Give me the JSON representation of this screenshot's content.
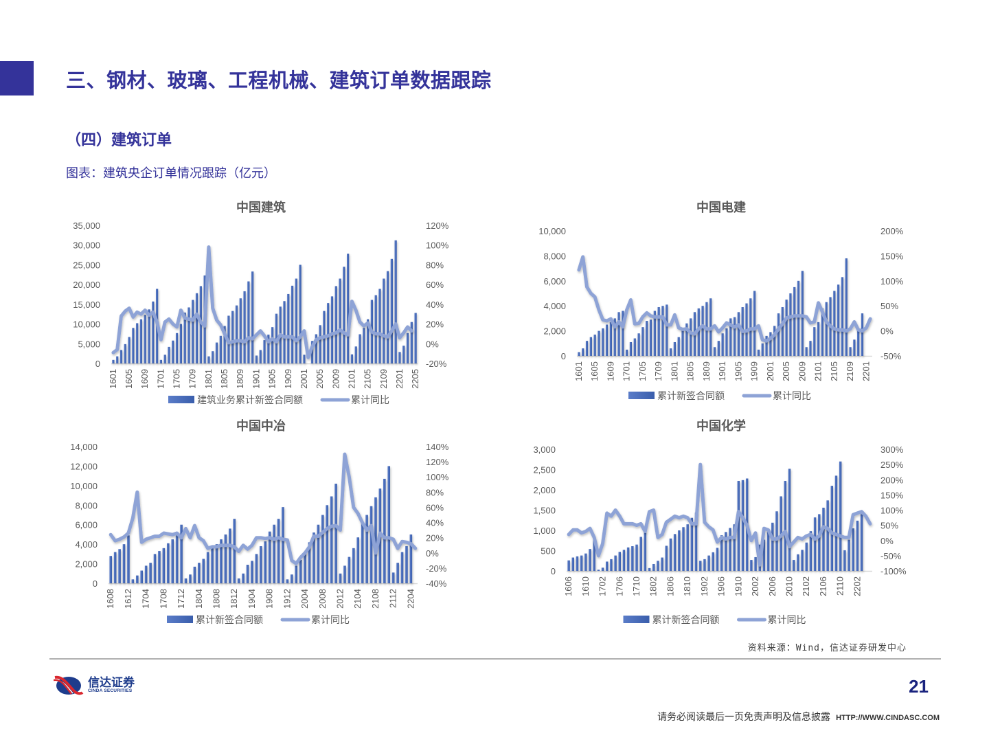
{
  "header": {
    "title": "三、钢材、玻璃、工程机械、建筑订单数据跟踪",
    "accent_color": "#34339a"
  },
  "section": {
    "title": "（四）建筑订单",
    "figure_caption": "图表：建筑央企订单情况跟踪（亿元）"
  },
  "chart_data": [
    {
      "id": "cscec",
      "type": "bar+line",
      "title": "中国建筑",
      "categories_tick_labels": [
        "1601",
        "1605",
        "1609",
        "1701",
        "1705",
        "1709",
        "1801",
        "1805",
        "1809",
        "1901",
        "1905",
        "1909",
        "2001",
        "2005",
        "2009",
        "2101",
        "2105",
        "2109",
        "2201",
        "2205"
      ],
      "x_start": "1601",
      "x_end": "2205",
      "y_left": {
        "min": 0,
        "max": 35000,
        "step": 5000,
        "ticks": [
          "0",
          "5,000",
          "10,000",
          "15,000",
          "20,000",
          "25,000",
          "30,000",
          "35,000"
        ]
      },
      "y_right": {
        "min": -20,
        "max": 120,
        "step": 20,
        "ticks": [
          "-20%",
          "0%",
          "20%",
          "40%",
          "60%",
          "80%",
          "100%",
          "120%"
        ]
      },
      "series": [
        {
          "name": "建筑业务累计新签合同额",
          "type": "bar",
          "axis": "left",
          "values": [
            900,
            1800,
            3400,
            4900,
            6700,
            9000,
            10200,
            11200,
            12300,
            13700,
            15700,
            18900,
            900,
            2200,
            4200,
            5800,
            7700,
            10000,
            12900,
            14200,
            16100,
            17800,
            19600,
            22300,
            1800,
            3100,
            5300,
            7000,
            9500,
            12100,
            13300,
            14700,
            16500,
            18300,
            20800,
            23300,
            2000,
            3400,
            5900,
            7300,
            9200,
            12600,
            14400,
            15800,
            17600,
            19700,
            21500,
            25000,
            2200,
            0,
            5700,
            7400,
            9700,
            13300,
            15300,
            17000,
            19600,
            21500,
            24500,
            27800,
            2300,
            4300,
            7400,
            9000,
            11200,
            16100,
            17300,
            18900,
            21500,
            23400,
            26500,
            31200,
            2900,
            4500,
            7700,
            10500,
            12800
          ]
        },
        {
          "name": "累计同比",
          "type": "line",
          "axis": "right",
          "values": [
            -9,
            -6,
            28,
            33,
            36,
            27,
            32,
            30,
            34,
            29,
            32,
            22,
            4,
            22,
            25,
            20,
            17,
            34,
            26,
            25,
            24,
            30,
            22,
            18,
            98,
            36,
            24,
            19,
            10,
            1,
            2,
            3,
            3,
            2,
            6,
            5,
            9,
            13,
            8,
            2,
            5,
            2,
            9,
            7,
            7,
            7,
            3,
            7,
            13,
            -14,
            -3,
            4,
            6,
            7,
            8,
            10,
            11,
            14,
            11,
            9,
            43,
            34,
            22,
            18,
            21,
            12,
            10,
            10,
            8,
            7,
            13,
            20,
            6,
            11,
            17,
            13
          ]
        }
      ],
      "legend": [
        "建筑业务累计新签合同额",
        "累计同比"
      ]
    },
    {
      "id": "powerchina",
      "type": "bar+line",
      "title": "中国电建",
      "categories_tick_labels": [
        "1601",
        "1605",
        "1609",
        "1701",
        "1705",
        "1709",
        "1801",
        "1805",
        "1809",
        "1901",
        "1905",
        "1909",
        "2001",
        "2005",
        "2009",
        "2101",
        "2105",
        "2109",
        "2201"
      ],
      "x_start": "1601",
      "x_end": "2205",
      "y_left": {
        "min": 0,
        "max": 10000,
        "step": 2000,
        "ticks": [
          "0",
          "2,000",
          "4,000",
          "6,000",
          "8,000",
          "10,000"
        ]
      },
      "y_right": {
        "min": -50,
        "max": 200,
        "step": 50,
        "ticks": [
          "-50%",
          "0%",
          "50%",
          "100%",
          "150%",
          "200%"
        ]
      },
      "series": [
        {
          "name": "累计新签合同额",
          "type": "bar",
          "axis": "left",
          "values": [
            300,
            600,
            1200,
            1500,
            1700,
            2000,
            2200,
            2500,
            2700,
            3000,
            3500,
            3600,
            500,
            1100,
            1400,
            1800,
            2300,
            2800,
            2900,
            3600,
            3900,
            4000,
            4100,
            600,
            1100,
            1500,
            2100,
            2600,
            3000,
            3500,
            3800,
            4000,
            4300,
            4600,
            700,
            1200,
            1800,
            2200,
            3000,
            3100,
            3500,
            3900,
            4200,
            4600,
            5200,
            500,
            1000,
            1600,
            1900,
            2400,
            3400,
            3900,
            4500,
            5000,
            5500,
            6000,
            6800,
            700,
            1200,
            2300,
            2700,
            3800,
            4300,
            4700,
            5200,
            5700,
            6300,
            7800,
            700,
            1300,
            2200,
            3400
          ]
        },
        {
          "name": "累计同比",
          "type": "line",
          "axis": "right",
          "values": [
            122,
            148,
            88,
            75,
            68,
            42,
            22,
            20,
            24,
            8,
            18,
            8,
            42,
            62,
            14,
            15,
            28,
            36,
            30,
            28,
            28,
            28,
            12,
            12,
            32,
            6,
            3,
            4,
            -4,
            -6,
            4,
            10,
            4,
            4,
            10,
            -2,
            6,
            16,
            12,
            8,
            12,
            -1,
            0,
            4,
            4,
            10,
            -18,
            -20,
            -15,
            -8,
            4,
            14,
            26,
            28,
            30,
            30,
            30,
            28,
            16,
            18,
            56,
            38,
            18,
            10,
            4,
            2,
            2,
            0,
            4,
            18,
            2,
            0,
            6,
            24
          ]
        }
      ],
      "legend": [
        "累计新签合同额",
        "累计同比"
      ]
    },
    {
      "id": "mcc",
      "type": "bar+line",
      "title": "中国中冶",
      "categories_tick_labels": [
        "1608",
        "1612",
        "1704",
        "1708",
        "1712",
        "1804",
        "1808",
        "1812",
        "1904",
        "1908",
        "1912",
        "2004",
        "2008",
        "2012",
        "2104",
        "2108",
        "2112",
        "2204"
      ],
      "x_start": "1608",
      "x_end": "2205",
      "y_left": {
        "min": 0,
        "max": 14000,
        "step": 2000,
        "ticks": [
          "0",
          "2,000",
          "4,000",
          "6,000",
          "8,000",
          "10,000",
          "12,000",
          "14,000"
        ]
      },
      "y_right": {
        "min": -40,
        "max": 140,
        "step": 20,
        "ticks": [
          "-40%",
          "-20%",
          "0%",
          "20%",
          "40%",
          "60%",
          "80%",
          "100%",
          "120%",
          "140%"
        ]
      },
      "series": [
        {
          "name": "累计新签合同额",
          "type": "bar",
          "axis": "left",
          "values": [
            2800,
            3200,
            3500,
            4000,
            4900,
            400,
            800,
            1300,
            1800,
            2100,
            3000,
            3300,
            3600,
            4100,
            4500,
            4900,
            6000,
            500,
            900,
            1700,
            2100,
            2500,
            3200,
            3600,
            4000,
            4500,
            5000,
            5600,
            6600,
            500,
            1000,
            1900,
            2300,
            3000,
            3800,
            4300,
            5300,
            6000,
            6600,
            7800,
            400,
            900,
            1800,
            2400,
            3200,
            4200,
            5200,
            6000,
            7000,
            8000,
            8900,
            10200,
            1000,
            1800,
            2700,
            3600,
            4700,
            6200,
            7000,
            7900,
            8800,
            9700,
            10700,
            12000,
            1100,
            2100,
            3200,
            3800,
            5000
          ]
        },
        {
          "name": "累计同比",
          "type": "line",
          "axis": "right",
          "values": [
            24,
            16,
            18,
            21,
            26,
            46,
            80,
            14,
            18,
            20,
            22,
            22,
            26,
            25,
            24,
            26,
            20,
            32,
            20,
            36,
            20,
            16,
            6,
            8,
            8,
            10,
            10,
            10,
            8,
            2,
            10,
            5,
            10,
            20,
            20,
            19,
            20,
            18,
            20,
            18,
            17,
            -10,
            -14,
            -6,
            0,
            8,
            22,
            22,
            27,
            32,
            35,
            36,
            30,
            130,
            100,
            60,
            52,
            40,
            30,
            36,
            0,
            26,
            20,
            20,
            18,
            6,
            15,
            14,
            12,
            6
          ]
        }
      ],
      "legend": [
        "累计新签合同额",
        "累计同比"
      ]
    },
    {
      "id": "chemchina",
      "type": "bar+line",
      "title": "中国化学",
      "categories_tick_labels": [
        "1606",
        "1610",
        "1702",
        "1706",
        "1710",
        "1802",
        "1806",
        "1810",
        "1902",
        "1906",
        "1910",
        "2002",
        "2006",
        "2010",
        "2102",
        "2106",
        "2110",
        "2202"
      ],
      "x_start": "1606",
      "x_end": "2205",
      "y_left": {
        "min": 0,
        "max": 3000,
        "step": 500,
        "ticks": [
          "0",
          "500",
          "1,000",
          "1,500",
          "2,000",
          "2,500",
          "3,000"
        ]
      },
      "y_right": {
        "min": -100,
        "max": 300,
        "step": 50,
        "ticks": [
          "-100%",
          "-50%",
          "0%",
          "50%",
          "100%",
          "150%",
          "200%",
          "250%",
          "300%"
        ]
      },
      "series": [
        {
          "name": "累计新签合同额",
          "type": "bar",
          "axis": "left",
          "values": [
            260,
            330,
            360,
            380,
            430,
            540,
            760,
            30,
            80,
            230,
            290,
            380,
            470,
            520,
            580,
            610,
            650,
            840,
            960,
            70,
            170,
            250,
            330,
            620,
            800,
            910,
            1000,
            1080,
            1150,
            1310,
            1440,
            250,
            290,
            380,
            460,
            570,
            880,
            960,
            1060,
            1150,
            2220,
            2240,
            2280,
            270,
            340,
            650,
            770,
            980,
            1190,
            1470,
            1840,
            2220,
            2520,
            270,
            410,
            520,
            700,
            980,
            1320,
            1400,
            1560,
            1740,
            2100,
            2350,
            2700,
            510,
            770,
            1050,
            1240,
            1400
          ]
        },
        {
          "name": "累计同比",
          "type": "line",
          "axis": "right",
          "values": [
            20,
            35,
            35,
            25,
            30,
            40,
            10,
            -50,
            -10,
            90,
            80,
            100,
            80,
            55,
            55,
            55,
            50,
            55,
            30,
            95,
            100,
            10,
            20,
            60,
            70,
            80,
            75,
            80,
            75,
            55,
            55,
            250,
            60,
            45,
            35,
            -5,
            10,
            5,
            10,
            10,
            95,
            75,
            50,
            0,
            25,
            -80,
            40,
            35,
            5,
            5,
            15,
            30,
            -20,
            -5,
            10,
            5,
            15,
            20,
            5,
            15,
            45,
            40,
            25,
            20,
            15,
            10,
            10,
            85,
            90,
            95,
            80,
            55
          ]
        }
      ],
      "legend": [
        "累计新签合同额",
        "累计同比"
      ]
    }
  ],
  "colors": {
    "bar": "#3a5eac",
    "bar_light": "#5a7cc8",
    "line": "#8ea3d6",
    "axis_text": "#595959",
    "grid": "#d9d9d9"
  },
  "footer": {
    "source": "资料来源：Wind，信达证券研发中心",
    "logo_cn": "信达证券",
    "logo_en": "CINDA SECURITIES",
    "page_number": "21",
    "disclaimer": "请务必阅读最后一页免责声明及信息披露",
    "url": "HTTP://WWW.CINDASC.COM"
  }
}
